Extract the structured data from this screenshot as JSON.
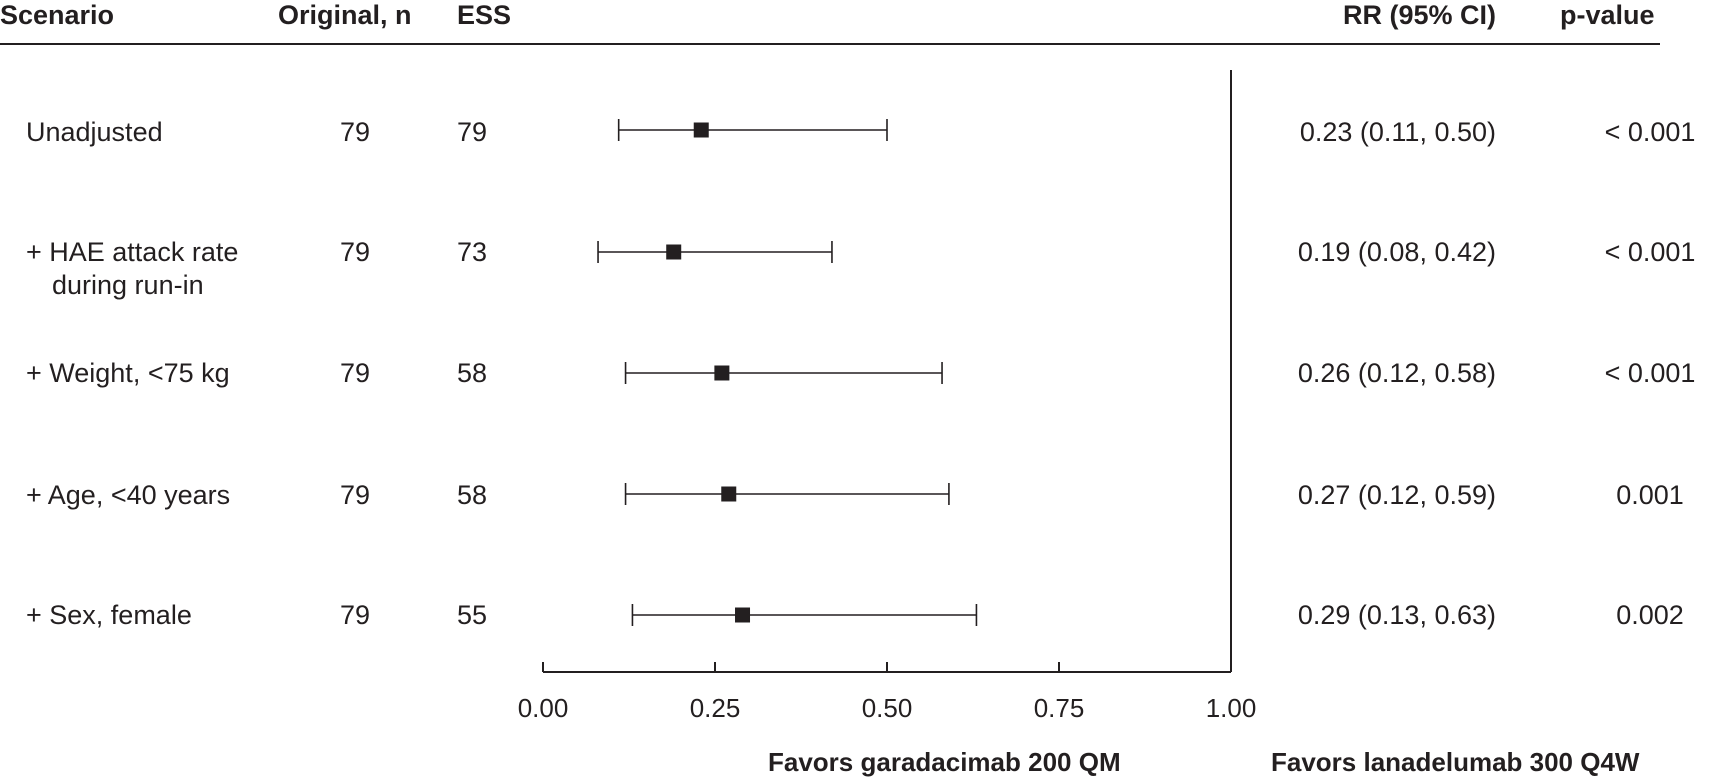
{
  "headers": {
    "scenario": "Scenario",
    "original_n": "Original, n",
    "ess": "ESS",
    "rr": "RR (95% CI)",
    "pvalue": "p-value"
  },
  "rows": [
    {
      "scenario": "Unadjusted",
      "scenario_line2": "",
      "original_n": "79",
      "ess": "79",
      "rr_text": "0.23 (0.11, 0.50)",
      "pvalue": "< 0.001"
    },
    {
      "scenario": "+ HAE attack rate",
      "scenario_line2": "during run-in",
      "original_n": "79",
      "ess": "73",
      "rr_text": "0.19 (0.08, 0.42)",
      "pvalue": "< 0.001"
    },
    {
      "scenario": "+ Weight, <75 kg",
      "scenario_line2": "",
      "original_n": "79",
      "ess": "58",
      "rr_text": "0.26 (0.12, 0.58)",
      "pvalue": "< 0.001"
    },
    {
      "scenario": "+ Age, <40 years",
      "scenario_line2": "",
      "original_n": "79",
      "ess": "58",
      "rr_text": "0.27 (0.12, 0.59)",
      "pvalue": "0.001"
    },
    {
      "scenario": "+ Sex, female",
      "scenario_line2": "",
      "original_n": "79",
      "ess": "55",
      "rr_text": "0.29 (0.13, 0.63)",
      "pvalue": "0.002"
    }
  ],
  "favors": {
    "left": "Favors garadacimab 200 QM",
    "right": "Favors lanadelumab 300 Q4W"
  },
  "chart_data": {
    "type": "scatter",
    "subtype": "forest",
    "xlim": [
      0,
      1.0
    ],
    "reference_line": 1.0,
    "ticks": [
      0.0,
      0.25,
      0.5,
      0.75,
      1.0
    ],
    "tick_labels": [
      "0.00",
      "0.25",
      "0.50",
      "0.75",
      "1.00"
    ],
    "series": [
      {
        "categories": [
          "Unadjusted",
          "+ HAE attack rate during run-in",
          "+ Weight, <75 kg",
          "+ Age, <40 years",
          "+ Sex, female"
        ],
        "estimate": [
          0.23,
          0.19,
          0.26,
          0.27,
          0.29
        ],
        "lower": [
          0.11,
          0.08,
          0.12,
          0.12,
          0.13
        ],
        "upper": [
          0.5,
          0.42,
          0.58,
          0.59,
          0.63
        ]
      }
    ],
    "colors": {
      "ink": "#231f20",
      "marker": "#231f20"
    }
  }
}
